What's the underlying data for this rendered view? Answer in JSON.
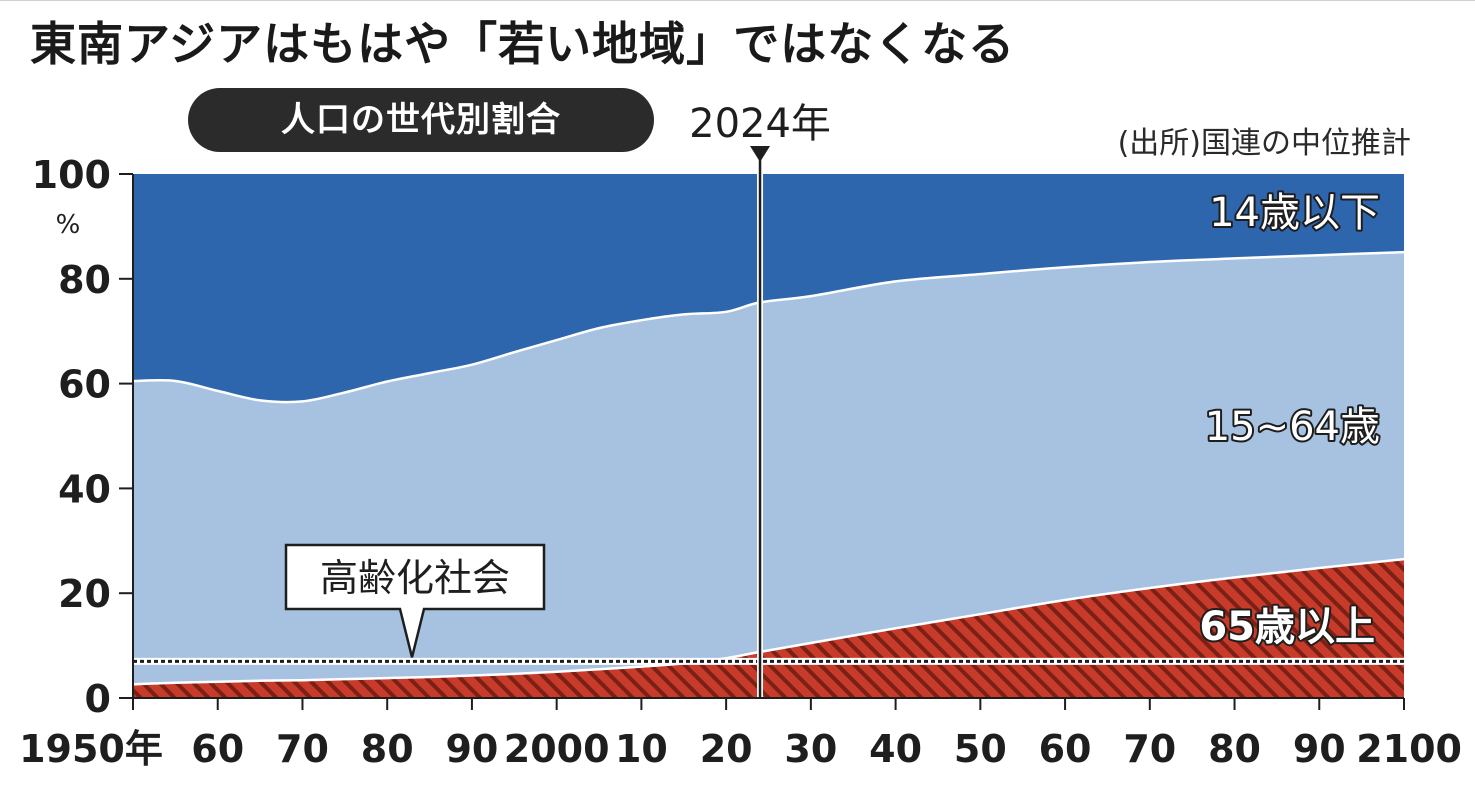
{
  "title": "東南アジアはもはや「若い地域」ではなくなる",
  "subtitle": "人口の世代別割合",
  "source": "(出所)国連の中位推計",
  "marker_label": "2024年",
  "callout_label": "高齢化社会",
  "y_unit": "%",
  "colors": {
    "under14": "#2e66ae",
    "working": "#a7c2e1",
    "elderly": "#c83b2a",
    "hatch": "#7a2015",
    "text": "#1e1e1e"
  },
  "chart_data": {
    "type": "area",
    "stacked": true,
    "x": [
      1950,
      1955,
      1960,
      1965,
      1970,
      1975,
      1980,
      1985,
      1990,
      1995,
      2000,
      2005,
      2010,
      2015,
      2020,
      2024,
      2030,
      2040,
      2050,
      2060,
      2070,
      2080,
      2090,
      2100
    ],
    "x_tick_values": [
      1950,
      1960,
      1970,
      1980,
      1990,
      2000,
      2010,
      2020,
      2030,
      2040,
      2050,
      2060,
      2070,
      2080,
      2090,
      2100
    ],
    "x_tick_labels": [
      "1950年",
      "60",
      "70",
      "80",
      "90",
      "2000",
      "10",
      "20",
      "30",
      "40",
      "50",
      "60",
      "70",
      "80",
      "90",
      "2100"
    ],
    "y_ticks": [
      0,
      20,
      40,
      60,
      80,
      100
    ],
    "ylim": [
      0,
      100
    ],
    "xlim": [
      1950,
      2100
    ],
    "series": [
      {
        "name": "65歳以上",
        "values": [
          2.6,
          2.9,
          3.1,
          3.3,
          3.4,
          3.6,
          3.8,
          4.0,
          4.3,
          4.6,
          5.0,
          5.5,
          6.0,
          6.6,
          7.6,
          8.8,
          10.5,
          13.3,
          16.0,
          18.7,
          21.0,
          23.0,
          24.8,
          26.5
        ]
      },
      {
        "name": "15~64歳",
        "values": [
          57.9,
          57.6,
          55.5,
          53.5,
          53.2,
          54.7,
          56.6,
          58.0,
          59.3,
          61.4,
          63.3,
          65.1,
          66.1,
          66.6,
          66.1,
          66.7,
          66.2,
          66.2,
          64.9,
          63.5,
          62.2,
          60.9,
          59.7,
          58.6
        ]
      },
      {
        "name": "14歳以下",
        "values": [
          39.5,
          39.5,
          41.4,
          43.2,
          43.4,
          41.7,
          39.6,
          38.0,
          36.4,
          34.0,
          31.7,
          29.4,
          27.9,
          26.8,
          26.3,
          24.5,
          23.3,
          20.5,
          19.1,
          17.8,
          16.8,
          16.1,
          15.5,
          14.9
        ]
      }
    ],
    "reference_line": {
      "label": "高齢化社会",
      "y": 7
    },
    "marker": {
      "x": 2024,
      "label": "2024年"
    },
    "grid": false,
    "legend": "inline"
  }
}
